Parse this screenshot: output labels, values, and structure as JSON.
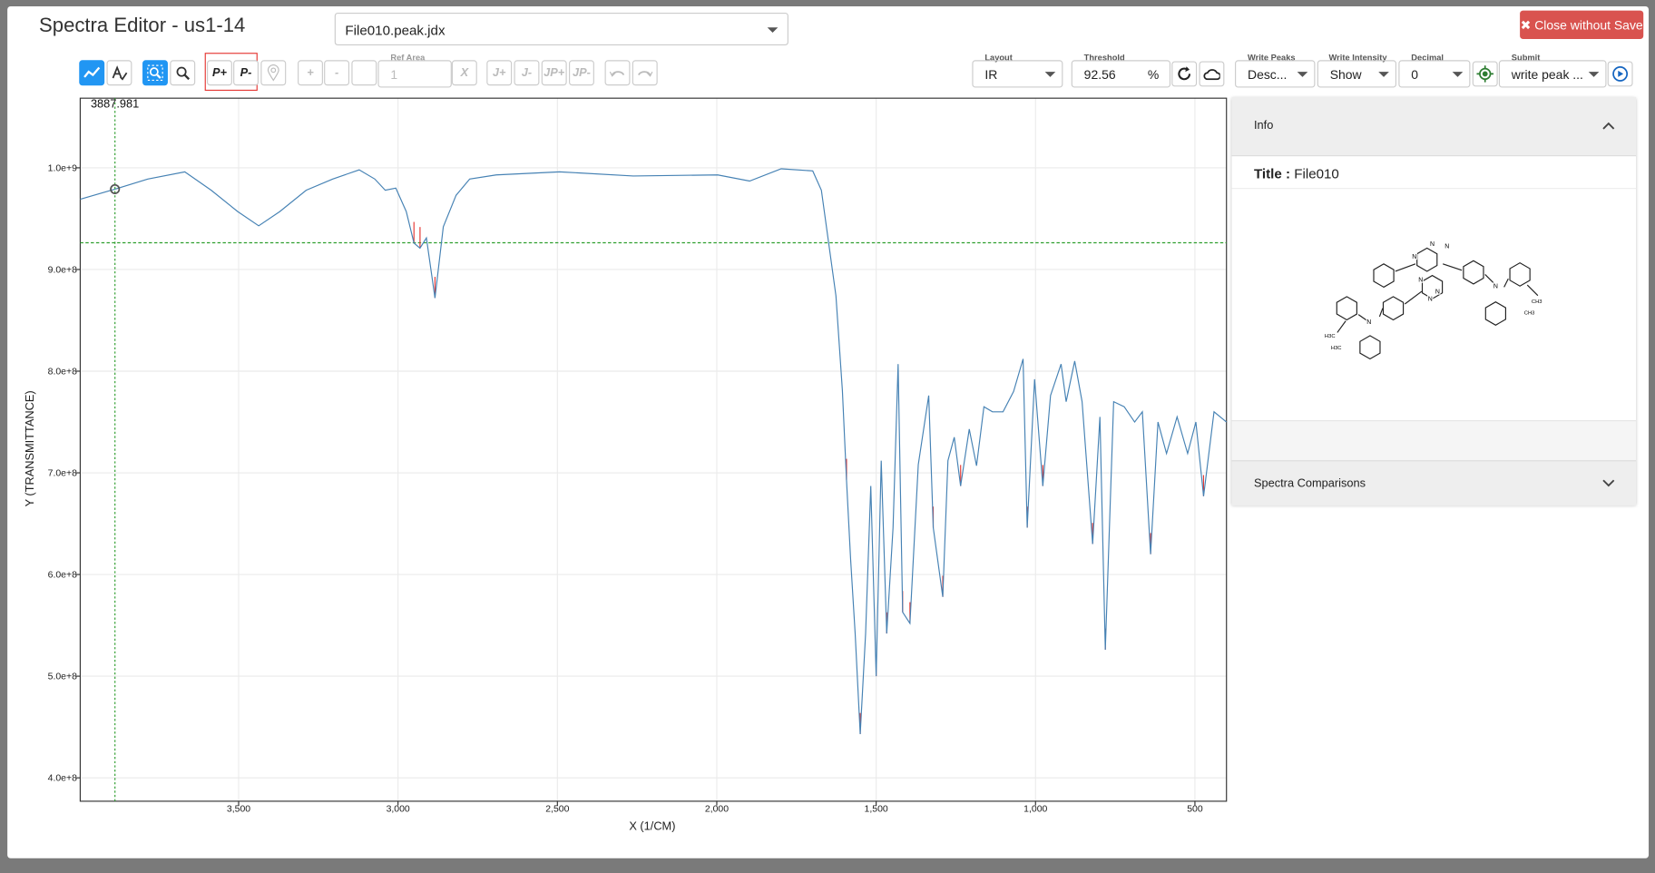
{
  "header": {
    "title": "Spectra Editor - us1-14",
    "file": "File010.peak.jdx",
    "close": "Close without Save"
  },
  "toolbar": {
    "peak_add": "P+",
    "peak_remove": "P-",
    "integ_add": "+",
    "integ_remove": "-",
    "ref_area_label": "Ref Area",
    "ref_area": 1,
    "integ_clear": "X",
    "j_add": "J+",
    "j_remove": "J-",
    "jp_add": "JP+",
    "jp_remove": "JP-",
    "layout_label": "Layout",
    "layout": "IR",
    "threshold_label": "Threshold",
    "threshold": 92.56,
    "threshold_unit": "%",
    "write_peaks_label": "Write Peaks",
    "write_peaks": "Desc...",
    "write_intensity_label": "Write Intensity",
    "write_intensity": "Show",
    "decimal_label": "Decimal",
    "decimal": 0,
    "submit_label": "Submit",
    "submit": "write peak ..."
  },
  "chart_data": {
    "type": "line",
    "x_label": "X (1/CM)",
    "y_label": "Y (TRANSMITTANCE)",
    "x": [
      3997,
      3888,
      3785,
      3669,
      3586,
      3503,
      3437,
      3371,
      3288,
      3205,
      3122,
      3073,
      3040,
      3007,
      2974,
      2950,
      2931,
      2911,
      2884,
      2858,
      2818,
      2775,
      2692,
      2493,
      2262,
      1997,
      1897,
      1798,
      1699,
      1672,
      1649,
      1626,
      1606,
      1593,
      1580,
      1566,
      1550,
      1533,
      1517,
      1500,
      1484,
      1467,
      1447,
      1431,
      1417,
      1394,
      1368,
      1335,
      1321,
      1291,
      1275,
      1255,
      1235,
      1208,
      1185,
      1162,
      1135,
      1102,
      1069,
      1039,
      1026,
      1003,
      977,
      953,
      920,
      904,
      877,
      854,
      821,
      798,
      781,
      755,
      722,
      689,
      665,
      639,
      616,
      589,
      556,
      523,
      497,
      473,
      440,
      401
    ],
    "series": [
      {
        "color": "#4682b4",
        "values": [
          969000000,
          979000000,
          989000000,
          996000000,
          978000000,
          957000000,
          943000000,
          957000000,
          978000000,
          989000000,
          998000000,
          989000000,
          978000000,
          980000000,
          957000000,
          926000000,
          921000000,
          931000000,
          872000000,
          942000000,
          973000000,
          989000000,
          993000000,
          996000000,
          992000000,
          993000000,
          987000000,
          999000000,
          997000000,
          978000000,
          926000000,
          874000000,
          781000000,
          693000000,
          615000000,
          542000000,
          443000000,
          542000000,
          687000000,
          500000000,
          712000000,
          542000000,
          646000000,
          807000000,
          563000000,
          552000000,
          708000000,
          776000000,
          646000000,
          578000000,
          712000000,
          735000000,
          687000000,
          743000000,
          707000000,
          765000000,
          760000000,
          760000000,
          780000000,
          812000000,
          646000000,
          792000000,
          687000000,
          776000000,
          807000000,
          770000000,
          810000000,
          770000000,
          630000000,
          755000000,
          526000000,
          770000000,
          765000000,
          750000000,
          760000000,
          620000000,
          750000000,
          719000000,
          755000000,
          719000000,
          750000000,
          677000000,
          760000000,
          750000000
        ]
      }
    ],
    "peaks": {
      "color": "#e53935",
      "x": [
        2950,
        2931,
        2884,
        1593,
        1550,
        1500,
        1467,
        1417,
        1394,
        1321,
        1291,
        1235,
        1026,
        977,
        821,
        781,
        639,
        473
      ],
      "values": [
        926000000,
        921000000,
        872000000,
        693000000,
        443000000,
        500000000,
        542000000,
        563000000,
        552000000,
        646000000,
        578000000,
        687000000,
        646000000,
        687000000,
        630000000,
        526000000,
        620000000,
        677000000
      ]
    },
    "threshold_y": 926300000,
    "cursor": {
      "x": 3887.981,
      "y": 979000000
    },
    "xlim": [
      3997,
      401
    ],
    "ylim": [
      377000000,
      1068500000
    ],
    "xticks": [
      {
        "value": 3500,
        "label": "3,500"
      },
      {
        "value": 3000,
        "label": "3,000"
      },
      {
        "value": 2500,
        "label": "2,500"
      },
      {
        "value": 2000,
        "label": "2,000"
      },
      {
        "value": 1500,
        "label": "1,500"
      },
      {
        "value": 1000,
        "label": "1,000"
      },
      500
    ],
    "yticks": [
      {
        "value": 1000000000,
        "label": "1.0e+9"
      },
      {
        "value": 900000000,
        "label": "9.0e+8"
      },
      {
        "value": 800000000,
        "label": "8.0e+8"
      },
      {
        "value": 700000000,
        "label": "7.0e+8"
      },
      {
        "value": 600000000,
        "label": "6.0e+8"
      },
      {
        "value": 500000000,
        "label": "5.0e+8"
      },
      {
        "value": 400000000,
        "label": "4.0e+8"
      }
    ],
    "grid": true
  },
  "info": {
    "header": "Info",
    "title_label": "Title :",
    "title": "File010",
    "comparisons": "Spectra Comparisons",
    "molecule": {
      "atoms": [
        "N",
        "N",
        "N",
        "N",
        "N",
        "N",
        "N",
        "N"
      ],
      "groups": [
        "CH3",
        "CH3",
        "H3C",
        "H3C"
      ]
    }
  }
}
